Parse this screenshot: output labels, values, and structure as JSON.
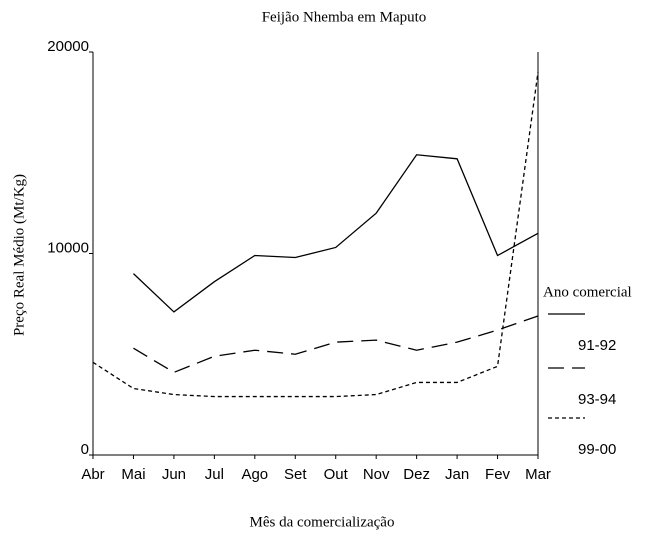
{
  "chart_data": {
    "type": "line",
    "title": "Feijão Nhemba em Maputo",
    "xlabel": "Mês da comercialização",
    "ylabel": "Preço Real Médio (Mt/Kg)",
    "legend_title": "Ano comercial",
    "categories": [
      "Abr",
      "Mai",
      "Jun",
      "Jul",
      "Ago",
      "Set",
      "Out",
      "Nov",
      "Dez",
      "Jan",
      "Fev",
      "Mar"
    ],
    "series": [
      {
        "name": "91-92",
        "color": "#000000",
        "style": "solid",
        "values": [
          null,
          9000,
          7100,
          8600,
          9900,
          9800,
          10300,
          12000,
          14900,
          14700,
          9900,
          11000
        ]
      },
      {
        "name": "93-94",
        "color": "#000000",
        "style": "dashed",
        "values": [
          null,
          5300,
          4100,
          4900,
          5200,
          5000,
          5600,
          5700,
          5200,
          5600,
          6200,
          6900
        ]
      },
      {
        "name": "99-00",
        "color": "#000000",
        "style": "dotted",
        "values": [
          4600,
          3300,
          3000,
          2900,
          2900,
          2900,
          2900,
          3000,
          3600,
          3600,
          4400,
          19000
        ]
      }
    ],
    "ylim": [
      0,
      20000
    ],
    "yticks": [
      0,
      10000,
      20000
    ],
    "grid": false,
    "legend": "right"
  }
}
